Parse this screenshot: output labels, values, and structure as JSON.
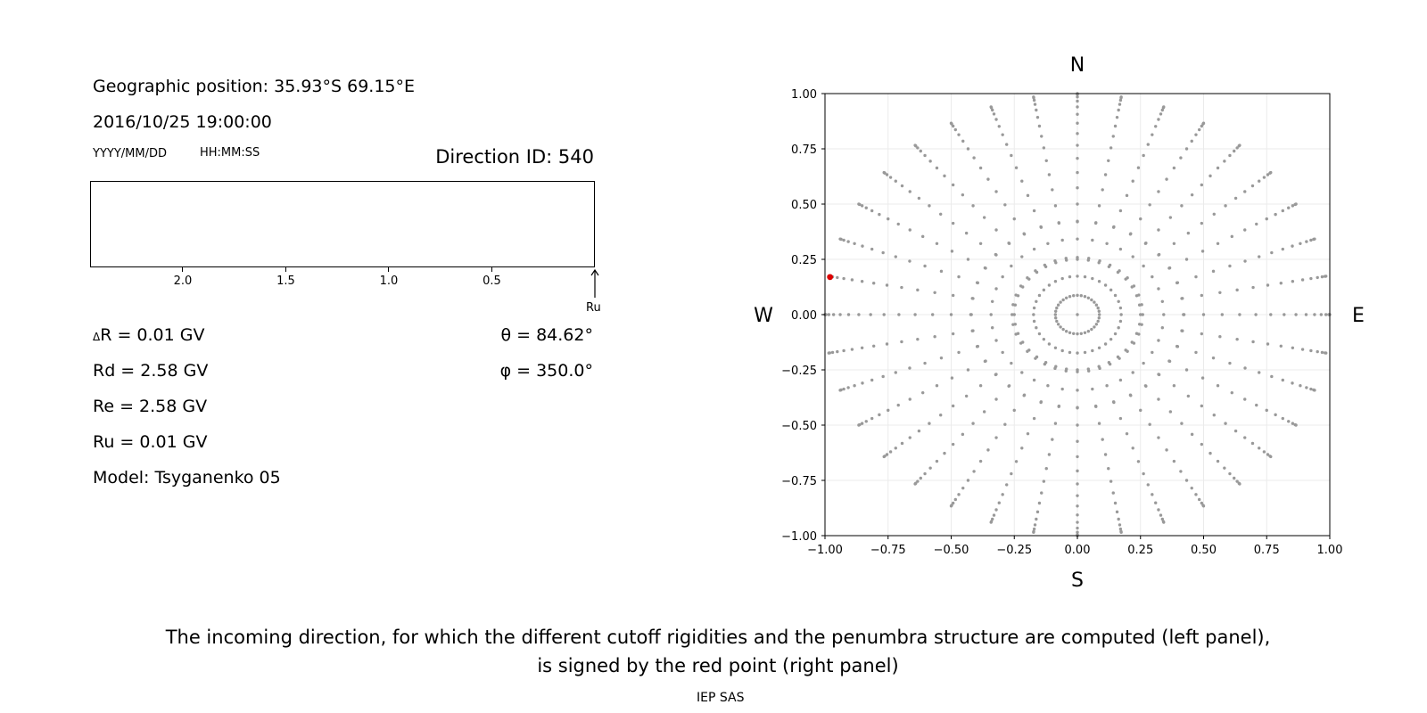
{
  "left_panel": {
    "position_line": "Geographic position: 35.93°S 69.15°E",
    "datetime": "2016/10/25 19:00:00",
    "date_format": "YYYY/MM/DD",
    "time_format": "HH:MM:SS",
    "direction_id": "Direction ID: 540",
    "penumbra_axis_ticks": [
      "2.0",
      "1.5",
      "1.0",
      "0.5"
    ],
    "penumbra_axis_tick_values": [
      2.0,
      1.5,
      1.0,
      0.5
    ],
    "penumbra_axis_max": 2.45,
    "ru_marker_label": "Ru",
    "ru_value": 0.01,
    "delta_r_symbol": "Δ",
    "delta_r_text": "R = 0.01 GV",
    "rd": "Rd = 2.58 GV",
    "re": "Re = 2.58 GV",
    "ru": "Ru = 0.01 GV",
    "model": "Model: Tsyganenko 05",
    "theta": "θ = 84.62°",
    "phi": "φ = 350.0°"
  },
  "chart_data": {
    "type": "scatter",
    "xlim": [
      -1.0,
      1.0
    ],
    "ylim": [
      -1.0,
      1.0
    ],
    "x_ticks": [
      "−1.00",
      "−0.75",
      "−0.50",
      "−0.25",
      "0.00",
      "0.25",
      "0.50",
      "0.75",
      "1.00"
    ],
    "y_ticks": [
      "1.00",
      "0.75",
      "0.50",
      "0.25",
      "0.00",
      "−0.25",
      "−0.50",
      "−0.75",
      "−1.00"
    ],
    "x_tick_values": [
      -1.0,
      -0.75,
      -0.5,
      -0.25,
      0.0,
      0.25,
      0.5,
      0.75,
      1.0
    ],
    "y_tick_values": [
      1.0,
      0.75,
      0.5,
      0.25,
      0.0,
      -0.25,
      -0.5,
      -0.75,
      -1.0
    ],
    "grid": true,
    "compass": {
      "north": "N",
      "south": "S",
      "west": "W",
      "east": "E"
    },
    "azimuth_step_deg": 10,
    "zenith_angles_deg": [
      0,
      5,
      10,
      15,
      20,
      25,
      30,
      35,
      40,
      45,
      50,
      55,
      60,
      65,
      70,
      75,
      80,
      85,
      90
    ],
    "zenith_plus_extra": [
      0.42,
      0.25
    ],
    "point_color": "#999999",
    "highlight": {
      "x": -0.98,
      "y": 0.17,
      "color": "#dd0000",
      "theta_deg": 84.62,
      "phi_deg": 350.0
    }
  },
  "caption": {
    "line1": "The incoming direction, for which the different cutoff rigidities and the penumbra structure are computed (left panel),",
    "line2": "is signed by the red point (right panel)",
    "credit": "IEP SAS"
  }
}
